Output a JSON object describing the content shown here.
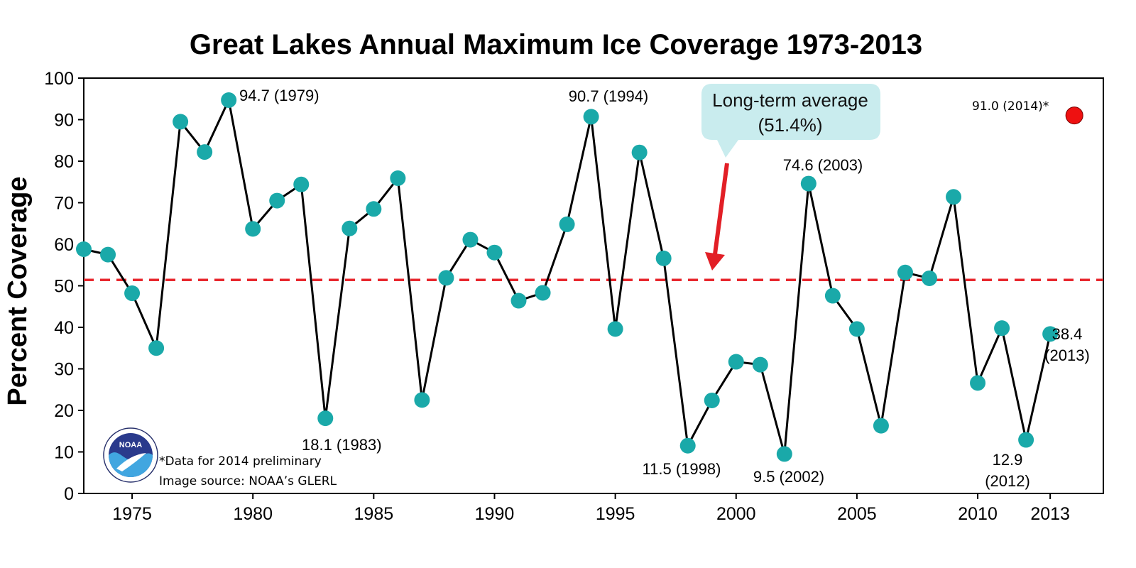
{
  "chart_data": {
    "type": "line",
    "title": "Great Lakes Annual Maximum Ice Coverage 1973-2013",
    "xlabel": "",
    "ylabel": "Percent Coverage",
    "xlim": [
      1973,
      2015.2
    ],
    "ylim": [
      0,
      100
    ],
    "yticks": [
      0,
      10,
      20,
      30,
      40,
      50,
      60,
      70,
      80,
      90,
      100
    ],
    "xticks": [
      1975,
      1980,
      1985,
      1990,
      1995,
      2000,
      2005,
      2010,
      2013
    ],
    "grid": false,
    "series": [
      {
        "name": "",
        "color": "#1aa9a9",
        "x": [
          1973,
          1974,
          1975,
          1976,
          1977,
          1978,
          1979,
          1980,
          1981,
          1982,
          1983,
          1984,
          1985,
          1986,
          1987,
          1988,
          1989,
          1990,
          1991,
          1992,
          1993,
          1994,
          1995,
          1996,
          1997,
          1998,
          1999,
          2000,
          2001,
          2002,
          2003,
          2004,
          2005,
          2006,
          2007,
          2008,
          2009,
          2010,
          2011,
          2012,
          2013
        ],
        "values": [
          58.8,
          57.5,
          48.2,
          35.0,
          89.5,
          82.2,
          94.7,
          63.7,
          70.5,
          74.4,
          18.1,
          63.8,
          68.5,
          75.9,
          22.5,
          51.9,
          61.1,
          58.0,
          46.4,
          48.3,
          64.8,
          90.7,
          39.6,
          82.1,
          56.6,
          11.5,
          22.4,
          31.7,
          31.0,
          9.5,
          74.6,
          47.6,
          39.6,
          16.3,
          53.2,
          51.8,
          71.4,
          26.6,
          39.8,
          12.9,
          38.4
        ]
      }
    ],
    "extra_point": {
      "x": 2014,
      "y": 91.0,
      "color": "#ee1111",
      "label": "91.0 (2014)*"
    },
    "reference_line": {
      "y": 51.4,
      "color": "#e8282f",
      "style": "dashed"
    },
    "callout": {
      "line1": "Long-term average",
      "line2": "(51.4%)",
      "fill": "#c9ecee",
      "arrow_color": "#e21f26"
    },
    "annotations": [
      {
        "text": "94.7 (1979)"
      },
      {
        "text": "18.1 (1983)"
      },
      {
        "text": "90.7 (1994)"
      },
      {
        "text": "11.5 (1998)"
      },
      {
        "text": "74.6 (2003)"
      },
      {
        "text": "9.5 (2002)"
      },
      {
        "text": "12.9"
      },
      {
        "text": "(2012)"
      },
      {
        "text": "38.4"
      },
      {
        "text": "(2013)"
      }
    ]
  },
  "notes": {
    "line1": "*Data for 2014 preliminary",
    "line2": "Image source: NOAA’s GLERL"
  },
  "logo": {
    "icon": "noaa-logo-icon",
    "text": "NOAA"
  }
}
